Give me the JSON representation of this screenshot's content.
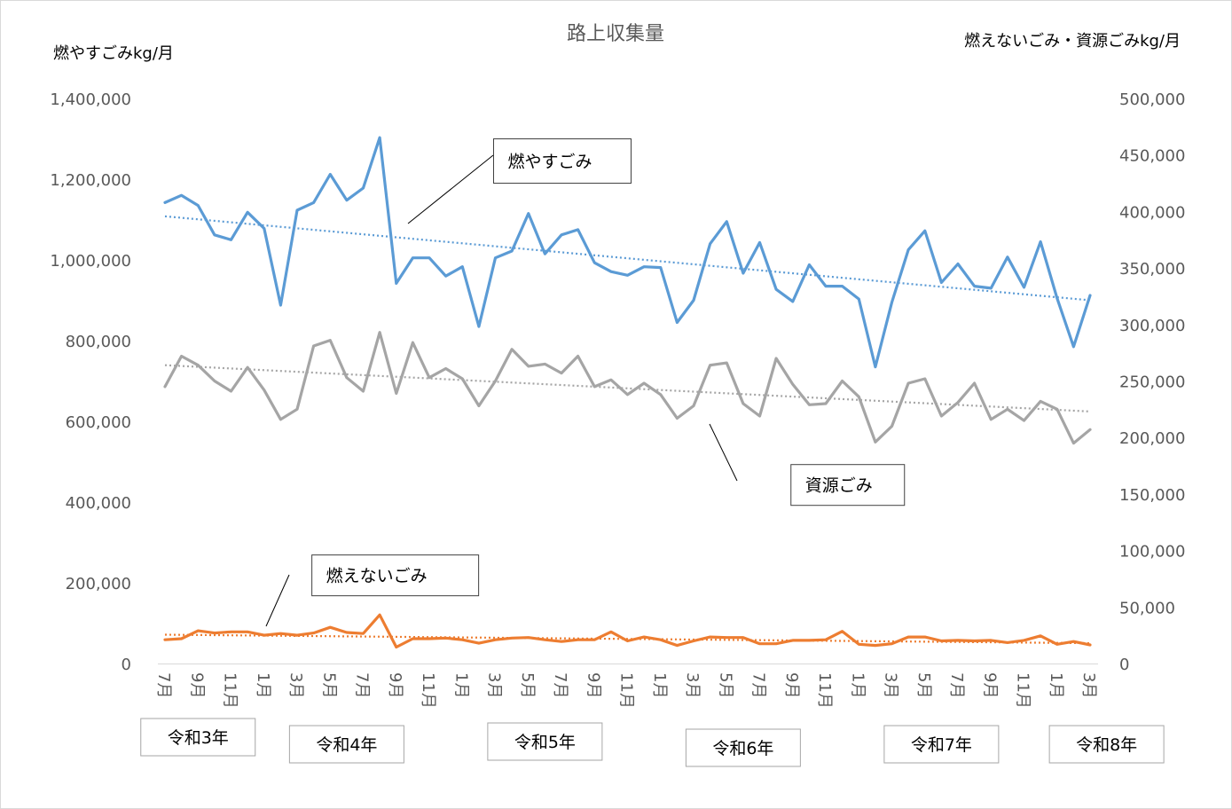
{
  "chart_data": {
    "type": "line",
    "title": "路上収集量",
    "ylabel_left": "燃やすごみkg/月",
    "ylabel_right": "燃えないごみ・資源ごみkg/月",
    "ylim_left": [
      0,
      1400000
    ],
    "ylim_right": [
      0,
      500000
    ],
    "left_ticks": [
      "0",
      "200,000",
      "400,000",
      "600,000",
      "800,000",
      "1,000,000",
      "1,200,000",
      "1,400,000"
    ],
    "right_ticks": [
      "0",
      "50,000",
      "100,000",
      "150,000",
      "200,000",
      "250,000",
      "300,000",
      "350,000",
      "400,000",
      "450,000",
      "500,000"
    ],
    "x_ticks": [
      {
        "index": 0,
        "label": "7月"
      },
      {
        "index": 2,
        "label": "9月"
      },
      {
        "index": 4,
        "label": "11月"
      },
      {
        "index": 6,
        "label": "1月"
      },
      {
        "index": 8,
        "label": "3月"
      },
      {
        "index": 10,
        "label": "5月"
      },
      {
        "index": 12,
        "label": "7月"
      },
      {
        "index": 14,
        "label": "9月"
      },
      {
        "index": 16,
        "label": "11月"
      },
      {
        "index": 18,
        "label": "1月"
      },
      {
        "index": 20,
        "label": "3月"
      },
      {
        "index": 22,
        "label": "5月"
      },
      {
        "index": 24,
        "label": "7月"
      },
      {
        "index": 26,
        "label": "9月"
      },
      {
        "index": 28,
        "label": "11月"
      },
      {
        "index": 30,
        "label": "1月"
      },
      {
        "index": 32,
        "label": "3月"
      },
      {
        "index": 34,
        "label": "5月"
      },
      {
        "index": 36,
        "label": "7月"
      },
      {
        "index": 38,
        "label": "9月"
      },
      {
        "index": 40,
        "label": "11月"
      },
      {
        "index": 42,
        "label": "1月"
      },
      {
        "index": 44,
        "label": "3月"
      },
      {
        "index": 46,
        "label": "5月"
      },
      {
        "index": 48,
        "label": "7月"
      },
      {
        "index": 50,
        "label": "9月"
      },
      {
        "index": 52,
        "label": "11月"
      },
      {
        "index": 54,
        "label": "1月"
      },
      {
        "index": 56,
        "label": "3月"
      }
    ],
    "year_labels": [
      {
        "label": "令和3年",
        "index": 2
      },
      {
        "label": "令和4年",
        "index": 11
      },
      {
        "label": "令和5年",
        "index": 23
      },
      {
        "label": "令和6年",
        "index": 35
      },
      {
        "label": "令和7年",
        "index": 47
      },
      {
        "label": "令和8年",
        "index": 57
      }
    ],
    "series": [
      {
        "name": "燃やすごみ",
        "axis": "left",
        "color": "#5b9bd5",
        "trend_start": 1108000,
        "trend_end": 900000,
        "label_index": 20,
        "label_value": 1245000,
        "values": [
          1142000,
          1160000,
          1135000,
          1062000,
          1050000,
          1118000,
          1078000,
          888000,
          1123000,
          1142000,
          1212000,
          1148000,
          1178000,
          1303000,
          942000,
          1005000,
          1005000,
          960000,
          983000,
          835000,
          1005000,
          1022000,
          1115000,
          1015000,
          1062000,
          1075000,
          993000,
          971000,
          962000,
          983000,
          981000,
          845000,
          900000,
          1040000,
          1095000,
          967000,
          1043000,
          927000,
          897000,
          988000,
          935000,
          935000,
          903000,
          735000,
          895000,
          1025000,
          1072000,
          944000,
          990000,
          935000,
          930000,
          1007000,
          932000,
          1045000,
          905000,
          785000,
          912000
        ]
      },
      {
        "name": "資源ごみ",
        "axis": "right",
        "color": "#a5a5a5",
        "trend_start": 264000,
        "trend_end": 223000,
        "label_index": 38,
        "label_value": 158000,
        "values": [
          245000,
          272000,
          264000,
          250000,
          241000,
          262000,
          242000,
          216000,
          225000,
          281000,
          286000,
          253000,
          241000,
          293000,
          239000,
          284000,
          253000,
          261000,
          252000,
          228000,
          250000,
          278000,
          263000,
          265000,
          257000,
          272000,
          245000,
          251000,
          238000,
          248000,
          238000,
          217000,
          228000,
          264000,
          266000,
          230000,
          219000,
          270000,
          247000,
          229000,
          230000,
          250000,
          236000,
          196000,
          210000,
          248000,
          252000,
          219000,
          231000,
          248000,
          216000,
          225000,
          215000,
          232000,
          225000,
          195000,
          207000
        ]
      },
      {
        "name": "燃えないごみ",
        "axis": "right",
        "color": "#ed7d31",
        "trend_start": 25500,
        "trend_end": 18000,
        "label_index": 9,
        "label_value": 78000,
        "values": [
          21000,
          22000,
          29000,
          27000,
          28000,
          28000,
          25000,
          26500,
          25000,
          27000,
          32000,
          27500,
          26500,
          43000,
          14500,
          22000,
          22000,
          22500,
          21000,
          18000,
          21000,
          22500,
          23000,
          21000,
          19500,
          21000,
          21000,
          28000,
          20000,
          23500,
          21000,
          16000,
          20000,
          23500,
          23000,
          23000,
          17500,
          17500,
          20500,
          20500,
          21000,
          28500,
          17000,
          16000,
          17500,
          23500,
          23500,
          20000,
          20500,
          20000,
          20500,
          18500,
          20500,
          24500,
          17000,
          19500,
          16500
        ]
      }
    ]
  }
}
